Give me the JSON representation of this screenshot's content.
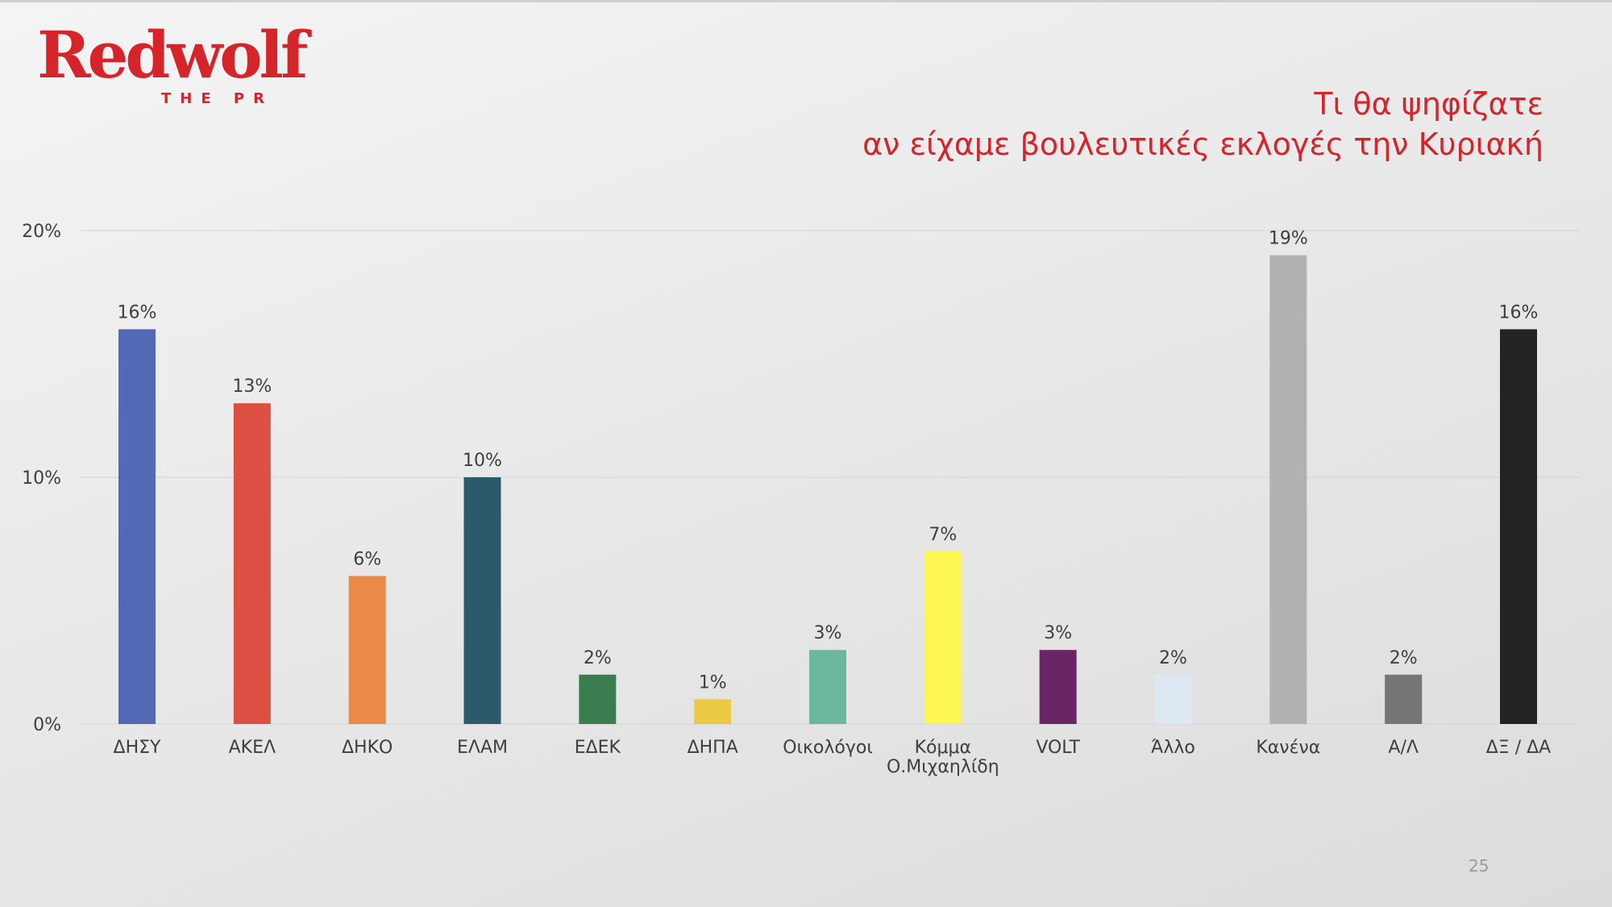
{
  "logo": {
    "text": "Redwolf",
    "tagline": "THE PR"
  },
  "page_number": "25",
  "chart_data": {
    "type": "bar",
    "title": [
      "Τι θα ψηφίζατε",
      "αν είχαμε βουλευτικές εκλογές την Κυριακή"
    ],
    "xlabel": "",
    "ylabel": "",
    "ylim": [
      0,
      20
    ],
    "yticks": [
      {
        "value": 0,
        "label": "0%"
      },
      {
        "value": 10,
        "label": "10%"
      },
      {
        "value": 20,
        "label": "20%"
      }
    ],
    "grid": true,
    "legend": "none",
    "categories": [
      [
        "ΔΗΣΥ"
      ],
      [
        "ΑΚΕΛ"
      ],
      [
        "ΔΗΚΟ"
      ],
      [
        "ΕΛΑΜ"
      ],
      [
        "ΕΔΕΚ"
      ],
      [
        "ΔΗΠΑ"
      ],
      [
        "Οικολόγοι"
      ],
      [
        "Κόμμα",
        "Ο.Μιχαηλίδη"
      ],
      [
        "VOLT"
      ],
      [
        "Άλλο"
      ],
      [
        "Κανένα"
      ],
      [
        "Α/Λ"
      ],
      [
        "ΔΞ / ΔΑ"
      ]
    ],
    "values": [
      16,
      13,
      6,
      10,
      2,
      1,
      3,
      7,
      3,
      2,
      19,
      2,
      16
    ],
    "value_labels": [
      "16%",
      "13%",
      "6%",
      "10%",
      "2%",
      "1%",
      "3%",
      "7%",
      "3%",
      "2%",
      "19%",
      "2%",
      "16%"
    ],
    "colors": [
      "#5469b5",
      "#dd4f43",
      "#ea8a46",
      "#2b5a6b",
      "#3a7d4e",
      "#ecca44",
      "#6db79d",
      "#fbf651",
      "#6a2566",
      "#dde8f2",
      "#b1b1b1",
      "#767676",
      "#232323"
    ]
  },
  "colors": {
    "brand": "#d5242a",
    "axis_text": "#3e3e3e",
    "gridline": "#d3d3d3",
    "page_number": "#9a9a9a"
  }
}
